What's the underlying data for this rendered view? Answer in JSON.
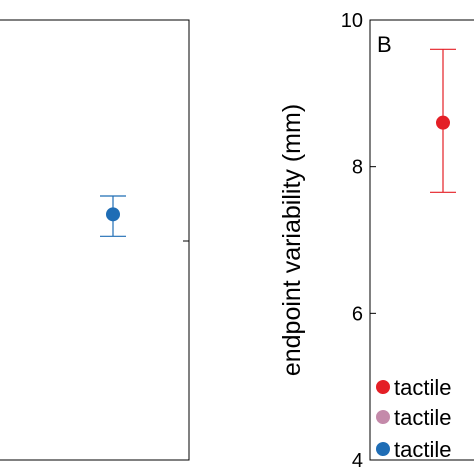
{
  "chart_data": [
    {
      "panel": "A",
      "type": "scatter",
      "panel_letter": "",
      "ylim": [
        4,
        10
      ],
      "points": [
        {
          "y": 7.35,
          "err_low": 7.05,
          "err_high": 7.6,
          "color": "#1f6db5"
        }
      ]
    },
    {
      "panel": "B",
      "type": "scatter",
      "panel_letter": "B",
      "ylabel": "endpoint variability (mm)",
      "ylim": [
        4,
        10
      ],
      "yticks": [
        4,
        6,
        8,
        10
      ],
      "ytick_labels": [
        "4",
        "6",
        "8",
        "10"
      ],
      "legend_position": "bottom-right",
      "legend": [
        {
          "label": "tactile",
          "color": "#e41f26"
        },
        {
          "label": "tactile",
          "color": "#c48aaa"
        },
        {
          "label": "tactile",
          "color": "#1f6db5"
        }
      ],
      "points": [
        {
          "y": 8.6,
          "err_low": 7.65,
          "err_high": 9.6,
          "color": "#e41f26"
        }
      ]
    }
  ]
}
